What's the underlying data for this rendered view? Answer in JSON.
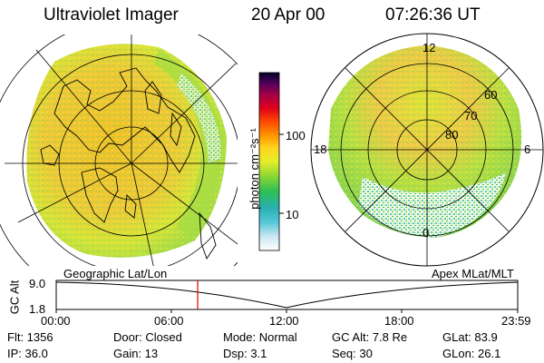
{
  "header": {
    "instrument": "Ultraviolet Imager",
    "date": "20 Apr 00",
    "time": "07:26:36 UT"
  },
  "colorbar": {
    "unit_label": "photon cm⁻²s⁻¹",
    "ticks": [
      "100",
      "10"
    ],
    "scale": "log",
    "stops": [
      "#ffffff",
      "#c9e6f3",
      "#52c7d6",
      "#28b0b0",
      "#2cbf55",
      "#8ed833",
      "#e6ee2a",
      "#ffd21f",
      "#ff9a00",
      "#ff4d00",
      "#e0001a",
      "#a0004a",
      "#50005a",
      "#000028"
    ]
  },
  "left_map": {
    "label": "Geographic Lat/Lon"
  },
  "right_map": {
    "label": "Apex MLat/MLT",
    "mlt_labels": [
      "12",
      "18",
      "6",
      "0"
    ],
    "lat_labels": [
      "60",
      "70",
      "80"
    ]
  },
  "altitude_plot": {
    "ylabel": "GC Alt",
    "yticks": [
      "9.0",
      "1.8"
    ],
    "xticks": [
      "00:00",
      "06:00",
      "12:00",
      "18:00",
      "23:59"
    ],
    "current_time_marker": "07:26",
    "marker_color": "#e00000"
  },
  "stats": {
    "flt": "Flt:  1356",
    "ip": "IP:  36.0",
    "door": "Door:  Closed",
    "gain": "Gain:  13",
    "mode": "Mode:  Normal",
    "dsp": "Dsp:       3.1",
    "gcalt": "GC Alt:  7.8 Re",
    "seq": "Seq:  30",
    "glat": "GLat:   83.9",
    "glon": "GLon:   26.1"
  }
}
